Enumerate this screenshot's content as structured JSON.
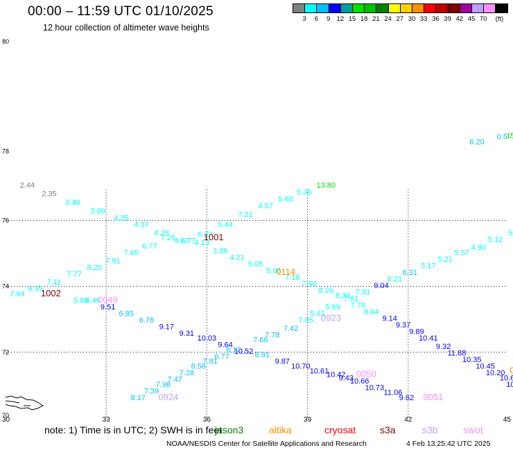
{
  "header": {
    "title": "00:00 – 11:59 UTC 01/10/2025",
    "subtitle": "12 hour collection of altimeter wave heights"
  },
  "colorbar": {
    "unit": "(ft)",
    "bins": [
      {
        "color": "#808080",
        "label": ""
      },
      {
        "color": "#00ffff",
        "label": "3"
      },
      {
        "color": "#00c0ff",
        "label": "6"
      },
      {
        "color": "#0000ff",
        "label": "9"
      },
      {
        "color": "#00a0a0",
        "label": "12"
      },
      {
        "color": "#00e000",
        "label": "15"
      },
      {
        "color": "#00c000",
        "label": "18"
      },
      {
        "color": "#008000",
        "label": "21"
      },
      {
        "color": "#ffff00",
        "label": "24"
      },
      {
        "color": "#ffd000",
        "label": "27"
      },
      {
        "color": "#ff9000",
        "label": "30"
      },
      {
        "color": "#ff0000",
        "label": "33"
      },
      {
        "color": "#c00000",
        "label": "36"
      },
      {
        "color": "#800000",
        "label": "39"
      },
      {
        "color": "#a000a0",
        "label": "42"
      },
      {
        "color": "#c0a0ff",
        "label": "45"
      },
      {
        "color": "#ff90ff",
        "label": "70"
      },
      {
        "color": "#000000",
        "label": ""
      }
    ]
  },
  "map": {
    "lon_ticks": [
      "30",
      "33",
      "36",
      "39",
      "42",
      "45"
    ],
    "lat_ticks": [
      "70",
      "72",
      "74",
      "76",
      "78",
      "80"
    ],
    "tracks": [
      {
        "points": [
          {
            "v": "2.44",
            "c": "#808080",
            "lon": 30.65,
            "lat": 76.95
          },
          {
            "v": "2.35",
            "c": "#808080",
            "lon": 31.3,
            "lat": 76.7
          },
          {
            "v": "3.48",
            "c": "#00ffff",
            "lon": 32.0,
            "lat": 76.45
          },
          {
            "v": "3.89",
            "c": "#00ffff",
            "lon": 32.75,
            "lat": 76.2
          },
          {
            "v": "4.25",
            "c": "#00ffff",
            "lon": 33.45,
            "lat": 76.0
          },
          {
            "v": "4.37",
            "c": "#00ffff",
            "lon": 34.05,
            "lat": 75.8
          },
          {
            "v": "4.28",
            "c": "#00ffff",
            "lon": 34.65,
            "lat": 75.55
          },
          {
            "v": "4.67",
            "c": "#00ffff",
            "lon": 35.25,
            "lat": 75.3
          },
          {
            "v": "6.77",
            "c": "#00ffff",
            "lon": 35.45,
            "lat": 75.3
          },
          {
            "v": "6.32",
            "c": "#00ffff",
            "lon": 35.95,
            "lat": 75.5
          },
          {
            "v": "5.44",
            "c": "#00ffff",
            "lon": 36.55,
            "lat": 75.8
          },
          {
            "v": "7.21",
            "c": "#00ffff",
            "lon": 37.15,
            "lat": 76.1
          },
          {
            "v": "4.57",
            "c": "#00ffff",
            "lon": 37.75,
            "lat": 76.35
          },
          {
            "v": "5.68",
            "c": "#00ffff",
            "lon": 38.35,
            "lat": 76.55
          },
          {
            "v": "5.36",
            "c": "#00ffff",
            "lon": 38.9,
            "lat": 76.75
          },
          {
            "v": "13.80",
            "c": "#00e000",
            "lon": 39.55,
            "lat": 76.95
          }
        ]
      },
      {
        "points": [
          {
            "v": "7.94",
            "c": "#00ffff",
            "lon": 30.35,
            "lat": 73.7
          },
          {
            "v": "6.55",
            "c": "#00ffff",
            "lon": 30.9,
            "lat": 73.85
          },
          {
            "v": "7.11",
            "c": "#00ffff",
            "lon": 31.45,
            "lat": 74.05
          },
          {
            "v": "7.77",
            "c": "#00ffff",
            "lon": 32.05,
            "lat": 74.3
          },
          {
            "v": "8.20",
            "c": "#00ffff",
            "lon": 32.65,
            "lat": 74.5
          },
          {
            "v": "7.91",
            "c": "#00ffff",
            "lon": 33.2,
            "lat": 74.7
          },
          {
            "v": "7.65",
            "c": "#00ffff",
            "lon": 33.75,
            "lat": 74.95
          },
          {
            "v": "6.77",
            "c": "#00ffff",
            "lon": 34.3,
            "lat": 75.15
          },
          {
            "v": "7.25",
            "c": "#00ffff",
            "lon": 34.85,
            "lat": 75.4
          },
          {
            "v": "4.13",
            "c": "#00ffff",
            "lon": 35.85,
            "lat": 75.25
          },
          {
            "v": "3.85",
            "c": "#00ffff",
            "lon": 36.4,
            "lat": 75.0
          },
          {
            "v": "4.21",
            "c": "#00ffff",
            "lon": 36.9,
            "lat": 74.8
          },
          {
            "v": "5.05",
            "c": "#00ffff",
            "lon": 37.45,
            "lat": 74.6
          },
          {
            "v": "5.96",
            "c": "#00ffff",
            "lon": 38.0,
            "lat": 74.4
          },
          {
            "v": "7.18",
            "c": "#00ffff",
            "lon": 38.55,
            "lat": 74.2
          },
          {
            "v": "7.60",
            "c": "#00ffff",
            "lon": 39.05,
            "lat": 74.0
          },
          {
            "v": "8.26",
            "c": "#00ffff",
            "lon": 39.55,
            "lat": 73.8
          },
          {
            "v": "8.36",
            "c": "#00ffff",
            "lon": 40.05,
            "lat": 73.65
          },
          {
            "v": "7.61",
            "c": "#00ffff",
            "lon": 40.3,
            "lat": 73.55
          },
          {
            "v": "7.91",
            "c": "#00ffff",
            "lon": 40.65,
            "lat": 73.75
          },
          {
            "v": "9.04",
            "c": "#0000ff",
            "lon": 41.2,
            "lat": 73.95
          },
          {
            "v": "6.21",
            "c": "#00ffff",
            "lon": 41.6,
            "lat": 74.15
          },
          {
            "v": "6.31",
            "c": "#00c0ff",
            "lon": 42.05,
            "lat": 74.35
          },
          {
            "v": "5.17",
            "c": "#00ffff",
            "lon": 42.6,
            "lat": 74.55
          },
          {
            "v": "5.21",
            "c": "#00ffff",
            "lon": 43.1,
            "lat": 74.75
          },
          {
            "v": "5.57",
            "c": "#00ffff",
            "lon": 43.6,
            "lat": 74.95
          },
          {
            "v": "4.90",
            "c": "#00ffff",
            "lon": 44.1,
            "lat": 75.1
          },
          {
            "v": "5.12",
            "c": "#00ffff",
            "lon": 44.6,
            "lat": 75.35
          },
          {
            "v": "5",
            "c": "#00ffff",
            "lon": 45.05,
            "lat": 75.55
          }
        ]
      },
      {
        "points": [
          {
            "v": "5.86",
            "c": "#00ffff",
            "lon": 32.25,
            "lat": 73.5
          },
          {
            "v": "8.46",
            "c": "#00ffff",
            "lon": 32.6,
            "lat": 73.5
          },
          {
            "v": "9.51",
            "c": "#0000ff",
            "lon": 33.05,
            "lat": 73.3
          },
          {
            "v": "6.85",
            "c": "#00c0ff",
            "lon": 33.6,
            "lat": 73.1
          },
          {
            "v": "6.78",
            "c": "#00c0ff",
            "lon": 34.2,
            "lat": 72.9
          },
          {
            "v": "9.17",
            "c": "#0000ff",
            "lon": 34.8,
            "lat": 72.7
          },
          {
            "v": "9.31",
            "c": "#0000ff",
            "lon": 35.4,
            "lat": 72.5
          },
          {
            "v": "10.03",
            "c": "#0000ff",
            "lon": 36.0,
            "lat": 72.35
          },
          {
            "v": "9.64",
            "c": "#0000ff",
            "lon": 36.55,
            "lat": 72.15
          },
          {
            "v": "10.52",
            "c": "#0000ff",
            "lon": 37.1,
            "lat": 71.95
          },
          {
            "v": "8.91",
            "c": "#00c0ff",
            "lon": 37.65,
            "lat": 71.85
          },
          {
            "v": "9.87",
            "c": "#0000ff",
            "lon": 38.25,
            "lat": 71.65
          },
          {
            "v": "10.70",
            "c": "#0000ff",
            "lon": 38.8,
            "lat": 71.5
          },
          {
            "v": "10.61",
            "c": "#0000ff",
            "lon": 39.35,
            "lat": 71.35
          },
          {
            "v": "10.42",
            "c": "#0000ff",
            "lon": 39.85,
            "lat": 71.25
          },
          {
            "v": "9.43",
            "c": "#0000ff",
            "lon": 40.15,
            "lat": 71.15
          },
          {
            "v": "10.66",
            "c": "#0000ff",
            "lon": 40.55,
            "lat": 71.05
          },
          {
            "v": "10.73",
            "c": "#0000ff",
            "lon": 41.0,
            "lat": 70.85
          },
          {
            "v": "11.06",
            "c": "#0000ff",
            "lon": 41.55,
            "lat": 70.7
          },
          {
            "v": "9.62",
            "c": "#0000ff",
            "lon": 41.95,
            "lat": 70.55
          }
        ]
      },
      {
        "points": [
          {
            "v": "8.17",
            "c": "#00c0ff",
            "lon": 33.95,
            "lat": 70.55
          },
          {
            "v": "7.39",
            "c": "#00c0ff",
            "lon": 34.35,
            "lat": 70.75
          },
          {
            "v": "7.98",
            "c": "#00c0ff",
            "lon": 34.7,
            "lat": 70.95
          },
          {
            "v": "7.47",
            "c": "#00c0ff",
            "lon": 35.05,
            "lat": 71.1
          },
          {
            "v": "7.28",
            "c": "#00c0ff",
            "lon": 35.4,
            "lat": 71.3
          },
          {
            "v": "6.56",
            "c": "#00c0ff",
            "lon": 35.75,
            "lat": 71.5
          },
          {
            "v": "7.81",
            "c": "#00c0ff",
            "lon": 36.1,
            "lat": 71.65
          },
          {
            "v": "6.77",
            "c": "#00c0ff",
            "lon": 36.45,
            "lat": 71.8
          },
          {
            "v": "8.12",
            "c": "#00c0ff",
            "lon": 36.8,
            "lat": 72.0
          },
          {
            "v": "7.66",
            "c": "#00c0ff",
            "lon": 37.6,
            "lat": 72.3
          },
          {
            "v": "7.78",
            "c": "#00c0ff",
            "lon": 37.95,
            "lat": 72.45
          },
          {
            "v": "7.42",
            "c": "#00c0ff",
            "lon": 38.5,
            "lat": 72.65
          },
          {
            "v": "7.05",
            "c": "#00ffff",
            "lon": 38.95,
            "lat": 72.9
          },
          {
            "v": "5.61",
            "c": "#00ffff",
            "lon": 39.3,
            "lat": 73.1
          },
          {
            "v": "5.69",
            "c": "#00ffff",
            "lon": 39.75,
            "lat": 73.3
          },
          {
            "v": "7.78",
            "c": "#00ffff",
            "lon": 40.5,
            "lat": 73.35
          },
          {
            "v": "8.64",
            "c": "#00ffff",
            "lon": 40.9,
            "lat": 73.15
          }
        ]
      },
      {
        "points": [
          {
            "v": "9.14",
            "c": "#0000ff",
            "lon": 41.45,
            "lat": 72.95
          },
          {
            "v": "9.37",
            "c": "#0000ff",
            "lon": 41.85,
            "lat": 72.75
          },
          {
            "v": "9.89",
            "c": "#0000ff",
            "lon": 42.25,
            "lat": 72.55
          },
          {
            "v": "10.41",
            "c": "#0000ff",
            "lon": 42.6,
            "lat": 72.35
          },
          {
            "v": "9.32",
            "c": "#0000ff",
            "lon": 43.05,
            "lat": 72.1
          },
          {
            "v": "11.88",
            "c": "#0000ff",
            "lon": 43.45,
            "lat": 71.9
          },
          {
            "v": "10.35",
            "c": "#0000ff",
            "lon": 43.9,
            "lat": 71.7
          },
          {
            "v": "10.45",
            "c": "#0000ff",
            "lon": 44.3,
            "lat": 71.5
          },
          {
            "v": "10.20",
            "c": "#0000ff",
            "lon": 44.6,
            "lat": 71.3
          },
          {
            "v": "10.6",
            "c": "#0000ff",
            "lon": 44.95,
            "lat": 71.15
          },
          {
            "v": "10",
            "c": "#0000ff",
            "lon": 45.05,
            "lat": 70.95
          }
        ]
      },
      {
        "points": [
          {
            "v": "6.20",
            "c": "#00c0ff",
            "lon": 44.05,
            "lat": 78.2
          },
          {
            "v": "0.5",
            "c": "#00c0ff",
            "lon": 44.8,
            "lat": 78.35
          },
          {
            "v": "15",
            "c": "#00e000",
            "lon": 45.05,
            "lat": 78.38
          }
        ]
      }
    ],
    "passes": [
      {
        "label": "1001",
        "c": "#800000",
        "lon": 36.2,
        "lat": 75.4
      },
      {
        "label": "0114",
        "c": "#ff9000",
        "lon": 38.35,
        "lat": 74.35
      },
      {
        "label": "1002",
        "c": "#800000",
        "lon": 31.35,
        "lat": 73.7
      },
      {
        "label": "0049",
        "c": "#ff90ff",
        "lon": 33.05,
        "lat": 73.5
      },
      {
        "label": "0923",
        "c": "#c0a0ff",
        "lon": 39.7,
        "lat": 72.95
      },
      {
        "label": "0050",
        "c": "#ff90ff",
        "lon": 40.75,
        "lat": 71.25
      },
      {
        "label": "0924",
        "c": "#c0a0ff",
        "lon": 34.85,
        "lat": 70.55
      },
      {
        "label": "0051",
        "c": "#ff90ff",
        "lon": 42.75,
        "lat": 70.55
      },
      {
        "label": "0",
        "c": "#ff9000",
        "lon": 45.1,
        "lat": 71.35
      }
    ]
  },
  "footer": {
    "note": "note:  1) Time is in UTC; 2) SWH is in feet",
    "satellites": [
      {
        "name": "jason3",
        "c": "#008000"
      },
      {
        "name": "altika",
        "c": "#ff9000"
      },
      {
        "name": "cryosat",
        "c": "#ff0000"
      },
      {
        "name": "s3a",
        "c": "#800000"
      },
      {
        "name": "s3b",
        "c": "#c0a0ff"
      },
      {
        "name": "swot",
        "c": "#ff90ff"
      }
    ],
    "credit": "NOAA/NESDIS Center for Satellite Applications and Research",
    "timestamp": "4 Feb 13:25:42 UTC 2025"
  }
}
